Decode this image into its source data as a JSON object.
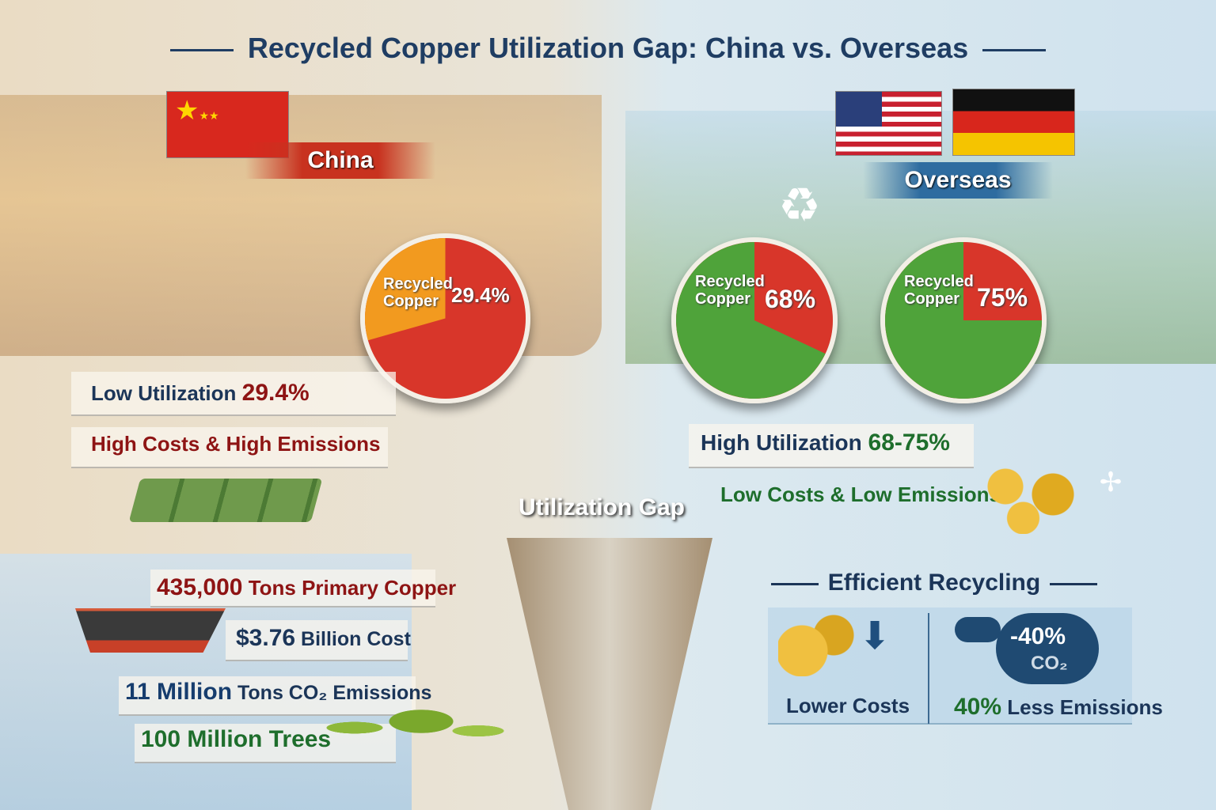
{
  "title": "Recycled Copper Utilization Gap: China vs. Overseas",
  "china": {
    "label": "China",
    "pie": {
      "label_line1": "Recycled",
      "label_line2": "Copper",
      "value_text": "29.4%",
      "recycled_percent": 29.4,
      "colors": {
        "recycled": "#f29a1f",
        "other": "#d8362a"
      }
    },
    "utilization_label": "Low Utilization",
    "utilization_value": "29.4%",
    "costs": "High Costs & High Emissions"
  },
  "overseas": {
    "label": "Overseas",
    "pies": [
      {
        "label_line1": "Recycled",
        "label_line2": "Copper",
        "value_text": "68%",
        "recycled_percent": 68
      },
      {
        "label_line1": "Recycled",
        "label_line2": "Copper",
        "value_text": "75%",
        "recycled_percent": 75
      }
    ],
    "colors": {
      "recycled": "#4fa33a",
      "other": "#d8362a"
    },
    "utilization_label": "High Utilization",
    "utilization_value": "68-75%",
    "costs": "Low Costs & Low Emissions"
  },
  "gap_label": "Utilization Gap",
  "impacts": [
    {
      "value": "435,000",
      "text": "Tons Primary Copper"
    },
    {
      "value": "$3.76",
      "text": "Billion Cost"
    },
    {
      "value": "11 Million",
      "text": "Tons CO₂ Emissions"
    },
    {
      "value": "100 Million",
      "text": "Trees"
    }
  ],
  "efficient": {
    "heading": "Efficient Recycling",
    "lower_costs": "Lower Costs",
    "cloud_value": "-40%",
    "cloud_unit": "CO₂",
    "emissions_value": "40%",
    "emissions_text": "Less Emissions"
  },
  "colors": {
    "title": "#1f3d63",
    "china_red": "#c8321f",
    "accent_green": "#1e6e2c"
  }
}
